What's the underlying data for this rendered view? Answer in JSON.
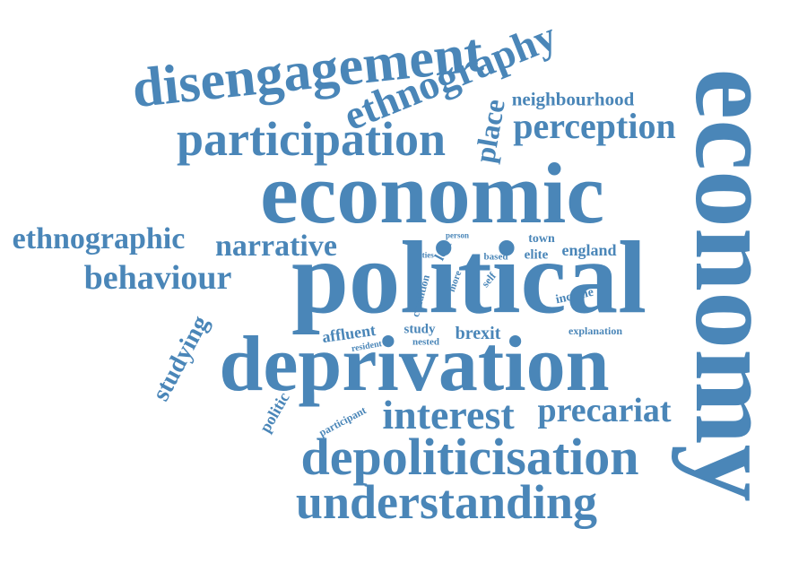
{
  "color": "#4a86b8",
  "words": [
    {
      "text": "economy",
      "rot": 90
    },
    {
      "text": "political",
      "rot": 0
    },
    {
      "text": "economic",
      "rot": 0
    },
    {
      "text": "deprivation",
      "rot": 0
    },
    {
      "text": "disengagement",
      "rot": -6
    },
    {
      "text": "ethnography",
      "rot": -22
    },
    {
      "text": "participation",
      "rot": 0
    },
    {
      "text": "depoliticisation",
      "rot": 0
    },
    {
      "text": "understanding",
      "rot": 0
    },
    {
      "text": "interest",
      "rot": 0
    },
    {
      "text": "perception",
      "rot": 0
    },
    {
      "text": "precariat",
      "rot": 0
    },
    {
      "text": "behaviour",
      "rot": 0
    },
    {
      "text": "narrative",
      "rot": 0
    },
    {
      "text": "ethnographic",
      "rot": 0
    },
    {
      "text": "place",
      "rot": -80
    },
    {
      "text": "studying",
      "rot": -62
    },
    {
      "text": "neighbourhood",
      "rot": 0
    },
    {
      "text": "england",
      "rot": 0
    },
    {
      "text": "brexit",
      "rot": 0
    },
    {
      "text": "affluent",
      "rot": -8
    },
    {
      "text": "politic",
      "rot": -60
    },
    {
      "text": "town",
      "rot": 0
    },
    {
      "text": "elite",
      "rot": 0
    },
    {
      "text": "income",
      "rot": -12
    },
    {
      "text": "study",
      "rot": 0
    },
    {
      "text": "left",
      "rot": -62
    },
    {
      "text": "explanation",
      "rot": 0
    },
    {
      "text": "condition",
      "rot": -75
    },
    {
      "text": "participant",
      "rot": -28
    },
    {
      "text": "self",
      "rot": -50
    },
    {
      "text": "based",
      "rot": 0
    },
    {
      "text": "nested",
      "rot": 0
    },
    {
      "text": "more",
      "rot": -70
    },
    {
      "text": "resident",
      "rot": -10
    },
    {
      "text": "cities",
      "rot": 0
    },
    {
      "text": "person",
      "rot": 0
    }
  ]
}
